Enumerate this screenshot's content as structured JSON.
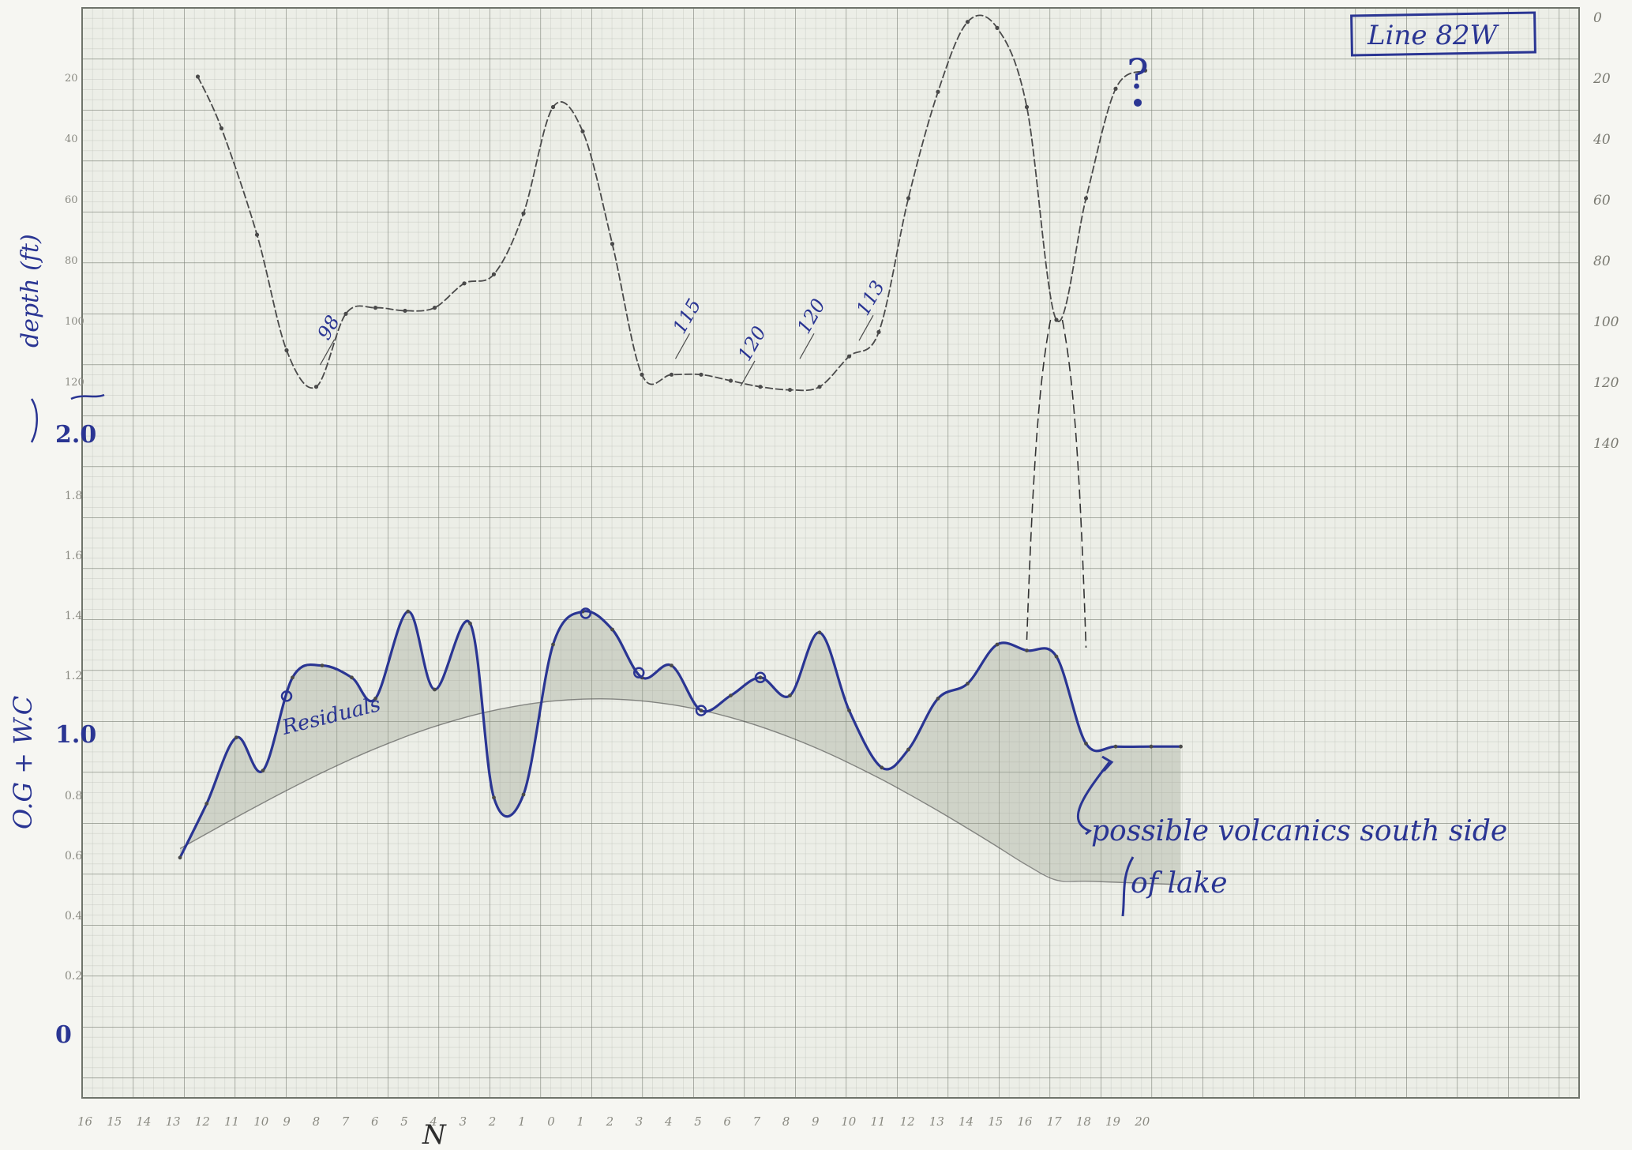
{
  "title": "Line 82W",
  "question_mark": "?",
  "ink_colors": {
    "pen": "#2a3593",
    "pencil": "#4a4a4a",
    "grid_minor": "#b9bdb4",
    "grid_major": "#7f8479",
    "paper": "#eeefe9"
  },
  "chart_data": [
    {
      "type": "line",
      "name": "depth profile",
      "ylabel": "depth (ft)",
      "y_axis_side": "right",
      "ylim": [
        150,
        0
      ],
      "right_tick_labels": [
        "0",
        "20",
        "40",
        "60",
        "80",
        "100",
        "120",
        "140"
      ],
      "left_tick_labels": [
        "20",
        "40",
        "60",
        "80",
        "100",
        "120"
      ],
      "grid": true,
      "x": [
        0.3,
        0.7,
        1.3,
        1.8,
        2.3,
        2.8,
        3.3,
        3.8,
        4.3,
        4.8,
        5.3,
        5.8,
        6.3,
        6.8,
        7.3,
        7.8,
        8.3,
        8.8,
        9.3,
        9.8,
        10.3,
        10.8,
        11.3,
        11.8,
        12.3,
        12.8,
        13.3,
        13.8,
        14.3,
        14.8,
        15.3,
        15.8,
        16.3
      ],
      "y": [
        20,
        37,
        72,
        110,
        122,
        98,
        96,
        97,
        96,
        88,
        85,
        65,
        30,
        38,
        75,
        118,
        118,
        118,
        120,
        122,
        123,
        122,
        112,
        104,
        60,
        25,
        2,
        4,
        30,
        100,
        60,
        24,
        18
      ],
      "point_labels": [
        {
          "x": 2.5,
          "y": 107,
          "text": "98"
        },
        {
          "x": 8.5,
          "y": 105,
          "text": "115"
        },
        {
          "x": 9.6,
          "y": 114,
          "text": "120"
        },
        {
          "x": 10.6,
          "y": 105,
          "text": "120"
        },
        {
          "x": 11.6,
          "y": 99,
          "text": "113"
        }
      ]
    },
    {
      "type": "line",
      "name": "O.G + W.C",
      "ylabel": "O.G + W.C",
      "y_axis_side": "left",
      "ylim": [
        0,
        2.0
      ],
      "tick_labels": [
        "0",
        "1.0",
        "2.0"
      ],
      "minor_tick_labels": [
        "0.2",
        "0.4",
        "0.6",
        "0.8",
        "1.2",
        "1.4",
        "1.6",
        "1.8"
      ],
      "x_tick_labels": [
        "16",
        "15",
        "14",
        "13",
        "12",
        "11",
        "10",
        "9",
        "8",
        "7",
        "6",
        "5",
        "4",
        "3",
        "2",
        "1",
        "0",
        "1",
        "2",
        "3",
        "4",
        "5",
        "6",
        "7",
        "8",
        "9",
        "10",
        "11",
        "12",
        "13",
        "14",
        "15",
        "16",
        "17",
        "18",
        "19",
        "20"
      ],
      "xlabel": "N",
      "grid": true,
      "x": [
        0.0,
        0.45,
        0.95,
        1.4,
        1.9,
        2.4,
        2.9,
        3.3,
        3.85,
        4.3,
        4.9,
        5.3,
        5.8,
        6.3,
        6.8,
        7.3,
        7.8,
        8.3,
        8.8,
        9.3,
        9.8,
        10.3,
        10.8,
        11.3,
        11.85,
        12.3,
        12.8,
        13.3,
        13.8,
        14.3,
        14.8,
        15.3,
        15.8,
        16.4,
        16.9
      ],
      "y": [
        0.59,
        0.77,
        0.99,
        0.88,
        1.19,
        1.23,
        1.19,
        1.12,
        1.41,
        1.15,
        1.37,
        0.79,
        0.8,
        1.3,
        1.41,
        1.35,
        1.19,
        1.23,
        1.08,
        1.13,
        1.19,
        1.13,
        1.34,
        1.08,
        0.89,
        0.95,
        1.12,
        1.17,
        1.3,
        1.28,
        1.26,
        0.97,
        0.96,
        0.96,
        0.96
      ],
      "marked_points": [
        1.8,
        6.85,
        7.75,
        8.8,
        9.8
      ],
      "residuals_label": "Residuals",
      "annotation": "possible volcanics south side of lake"
    }
  ]
}
